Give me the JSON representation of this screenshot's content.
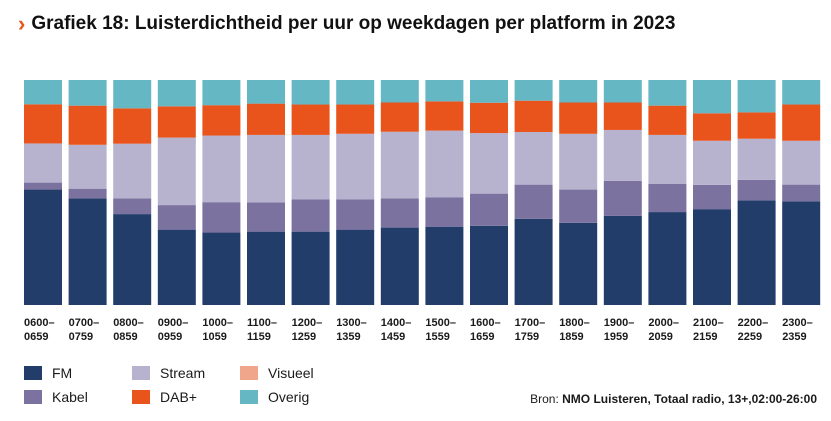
{
  "title": "Grafiek 18: Luisterdichtheid per uur op weekdagen per platform in 2023",
  "icon": "chevron-right-icon",
  "source": {
    "label": "Bron:",
    "text": "NMO Luisteren, Totaal radio, 13+,02:00-26:00"
  },
  "colors": {
    "FM": "#233d6b",
    "Kabel": "#7b729f",
    "Stream": "#b7b3cf",
    "Visueel": "#f0a68a",
    "DAB+": "#e8541c",
    "Overig": "#65b7c4",
    "accent": "#e8541c"
  },
  "chart_data": {
    "type": "bar",
    "stacked": true,
    "title": "Grafiek 18: Luisterdichtheid per uur op weekdagen per platform in 2023",
    "categories": [
      "0600–0659",
      "0700–0759",
      "0800–0859",
      "0900–0959",
      "1000–1059",
      "1100–1159",
      "1200–1259",
      "1300–1359",
      "1400–1459",
      "1500–1559",
      "1600–1659",
      "1700–1759",
      "1800–1859",
      "1900–1959",
      "2000–2059",
      "2100–2159",
      "2200–2259",
      "2300–2359"
    ],
    "tick_labels": [
      [
        "0600–",
        "0659"
      ],
      [
        "0700–",
        "0759"
      ],
      [
        "0800–",
        "0859"
      ],
      [
        "0900–",
        "0959"
      ],
      [
        "1000–",
        "1059"
      ],
      [
        "1100–",
        "1159"
      ],
      [
        "1200–",
        "1259"
      ],
      [
        "1300–",
        "1359"
      ],
      [
        "1400–",
        "1459"
      ],
      [
        "1500–",
        "1559"
      ],
      [
        "1600–",
        "1659"
      ],
      [
        "1700–",
        "1759"
      ],
      [
        "1800–",
        "1859"
      ],
      [
        "1900–",
        "1959"
      ],
      [
        "2000–",
        "2059"
      ],
      [
        "2100–",
        "2159"
      ],
      [
        "2200–",
        "2259"
      ],
      [
        "2300–",
        "2359"
      ]
    ],
    "ylim": [
      0,
      100
    ],
    "grid": false,
    "legend_position": "bottom-left",
    "series": [
      {
        "name": "FM",
        "values": [
          51.3,
          47.4,
          40.4,
          33.5,
          32.2,
          32.6,
          32.6,
          33.5,
          34.4,
          34.8,
          35.2,
          38.3,
          36.5,
          39.6,
          41.3,
          42.6,
          46.5,
          46.1
        ]
      },
      {
        "name": "Kabel",
        "values": [
          3.1,
          4.3,
          7.0,
          10.9,
          13.5,
          13.0,
          14.3,
          13.5,
          13.0,
          13.1,
          14.3,
          15.2,
          14.8,
          15.6,
          12.6,
          10.8,
          9.1,
          7.4
        ]
      },
      {
        "name": "Stream",
        "values": [
          17.4,
          19.5,
          24.3,
          30.0,
          29.6,
          30.0,
          28.7,
          29.1,
          29.6,
          29.6,
          26.9,
          23.4,
          24.8,
          22.6,
          21.7,
          19.6,
          18.3,
          19.5
        ]
      },
      {
        "name": "Visueel",
        "values": [
          0,
          0,
          0,
          0,
          0,
          0,
          0,
          0,
          0,
          0,
          0,
          0,
          0,
          0,
          0,
          0,
          0,
          0
        ]
      },
      {
        "name": "DAB+",
        "values": [
          17.4,
          17.4,
          15.7,
          13.9,
          13.5,
          13.9,
          13.5,
          13.0,
          13.0,
          13.0,
          13.5,
          13.9,
          13.9,
          12.2,
          13.0,
          12.2,
          11.7,
          16.1
        ]
      },
      {
        "name": "Overig",
        "values": [
          10.8,
          11.4,
          12.6,
          11.7,
          11.2,
          10.5,
          10.9,
          10.9,
          10.0,
          9.5,
          10.1,
          9.2,
          10.0,
          10.0,
          11.4,
          14.8,
          14.4,
          10.9
        ]
      }
    ]
  }
}
